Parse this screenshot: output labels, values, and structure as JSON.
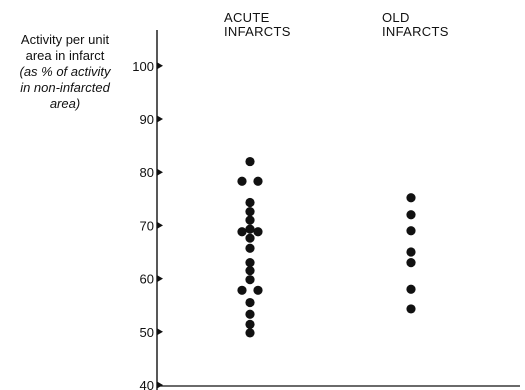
{
  "chart_data": {
    "type": "scatter",
    "ylabel_lines": [
      "Activity per unit",
      "area in infarct"
    ],
    "ylabel_note_lines": [
      "(as % of activity",
      "in non-infarcted",
      "area)"
    ],
    "categories": [
      "ACUTE INFARCTS",
      "OLD INFARCTS"
    ],
    "category_label_lines": [
      [
        "ACUTE",
        "INFARCTS"
      ],
      [
        "OLD",
        "INFARCTS"
      ]
    ],
    "ylim": [
      40,
      105
    ],
    "yticks": [
      40,
      50,
      60,
      70,
      80,
      90,
      100
    ],
    "grid": false,
    "points": [
      {
        "category": "ACUTE INFARCTS",
        "y": 82.0,
        "offset": 0
      },
      {
        "category": "ACUTE INFARCTS",
        "y": 78.3,
        "offset": -1
      },
      {
        "category": "ACUTE INFARCTS",
        "y": 78.3,
        "offset": 1
      },
      {
        "category": "ACUTE INFARCTS",
        "y": 74.3,
        "offset": 0
      },
      {
        "category": "ACUTE INFARCTS",
        "y": 72.6,
        "offset": 0
      },
      {
        "category": "ACUTE INFARCTS",
        "y": 71.0,
        "offset": 0
      },
      {
        "category": "ACUTE INFARCTS",
        "y": 69.3,
        "offset": 0
      },
      {
        "category": "ACUTE INFARCTS",
        "y": 68.8,
        "offset": -1
      },
      {
        "category": "ACUTE INFARCTS",
        "y": 68.8,
        "offset": 1
      },
      {
        "category": "ACUTE INFARCTS",
        "y": 67.6,
        "offset": 0
      },
      {
        "category": "ACUTE INFARCTS",
        "y": 65.7,
        "offset": 0
      },
      {
        "category": "ACUTE INFARCTS",
        "y": 63.0,
        "offset": 0
      },
      {
        "category": "ACUTE INFARCTS",
        "y": 61.5,
        "offset": 0
      },
      {
        "category": "ACUTE INFARCTS",
        "y": 59.8,
        "offset": 0
      },
      {
        "category": "ACUTE INFARCTS",
        "y": 57.8,
        "offset": -1
      },
      {
        "category": "ACUTE INFARCTS",
        "y": 57.8,
        "offset": 1
      },
      {
        "category": "ACUTE INFARCTS",
        "y": 55.5,
        "offset": 0
      },
      {
        "category": "ACUTE INFARCTS",
        "y": 53.3,
        "offset": 0
      },
      {
        "category": "ACUTE INFARCTS",
        "y": 51.4,
        "offset": 0
      },
      {
        "category": "ACUTE INFARCTS",
        "y": 49.8,
        "offset": 0
      },
      {
        "category": "OLD INFARCTS",
        "y": 75.2,
        "offset": 0
      },
      {
        "category": "OLD INFARCTS",
        "y": 72.0,
        "offset": 0
      },
      {
        "category": "OLD INFARCTS",
        "y": 69.0,
        "offset": 0
      },
      {
        "category": "OLD INFARCTS",
        "y": 65.0,
        "offset": 0
      },
      {
        "category": "OLD INFARCTS",
        "y": 63.0,
        "offset": 0
      },
      {
        "category": "OLD INFARCTS",
        "y": 58.0,
        "offset": 0
      },
      {
        "category": "OLD INFARCTS",
        "y": 54.3,
        "offset": 0
      }
    ]
  }
}
